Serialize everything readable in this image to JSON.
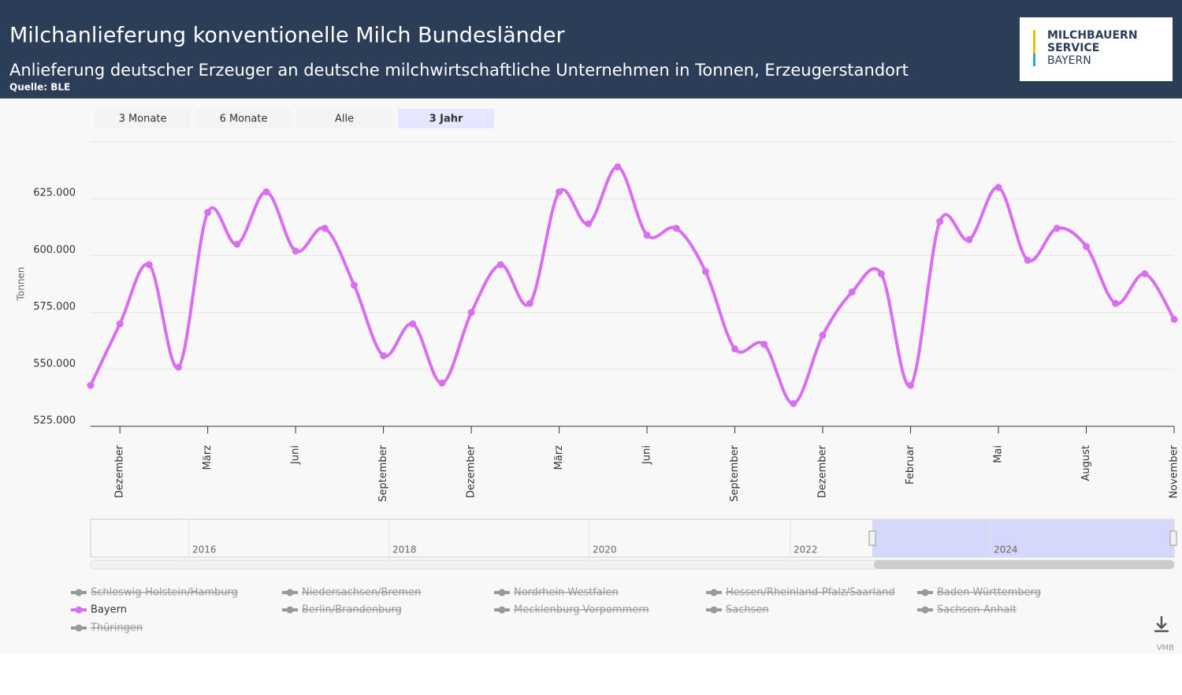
{
  "header": {
    "title": "Milchanlieferung konventionelle Milch Bundesländer",
    "subtitle": "Anlieferung deutscher Erzeuger an deutsche milchwirtschaftliche Unternehmen in Tonnen, Erzeugerstandort",
    "source": "Quelle: BLE",
    "logo": [
      "MILCHBAUERN",
      "SERVICE",
      "BAYERN"
    ]
  },
  "range_buttons": [
    "3 Monate",
    "6 Monate",
    "Alle",
    "3 Jahr"
  ],
  "selected_range": 3,
  "navigator": {
    "labels": [
      "2016",
      "2018",
      "2020",
      "2022",
      "2024"
    ]
  },
  "credit": "VMB",
  "chart_data": {
    "type": "line",
    "y_label": "Tonnen",
    "categories": [
      "November",
      "Dezember",
      null,
      null,
      "März",
      null,
      null,
      "Juni",
      null,
      null,
      "September",
      null,
      null,
      "Dezember",
      null,
      null,
      "März",
      null,
      null,
      "Juni",
      null,
      null,
      "September",
      null,
      null,
      "Dezember",
      null,
      null,
      "Februar",
      null,
      null,
      "Mai",
      null,
      null,
      "August",
      null,
      null,
      "November"
    ],
    "first_label_hidden": true,
    "ylim": [
      525000,
      650000
    ],
    "yticks": [
      {
        "value": 525000,
        "label": "525.000"
      },
      {
        "value": 550000,
        "label": "550.000"
      },
      {
        "value": 575000,
        "label": "575.000"
      },
      {
        "value": 600000,
        "label": "600.000"
      },
      {
        "value": 625000,
        "label": "625.000"
      }
    ],
    "grid": true,
    "series": [
      {
        "name": "Schleswig-Holstein/Hamburg",
        "visible": false
      },
      {
        "name": "Niedersachsen/Bremen",
        "visible": false
      },
      {
        "name": "Nordrhein-Westfalen",
        "visible": false
      },
      {
        "name": "Hessen/Rheinland-Pfalz/Saarland",
        "visible": false
      },
      {
        "name": "Baden-Württemberg",
        "visible": false
      },
      {
        "name": "Bayern",
        "visible": true,
        "color": "#d96ef0",
        "values": [
          543000,
          570000,
          596000,
          551000,
          619000,
          605000,
          628000,
          602000,
          612000,
          587000,
          556000,
          570000,
          544000,
          575000,
          596000,
          579000,
          628000,
          614000,
          639000,
          609000,
          612000,
          593000,
          559000,
          561000,
          535000,
          565000,
          584000,
          592000,
          543000,
          615000,
          607000,
          630000,
          598000,
          612000,
          604000,
          579000,
          592000,
          572000
        ]
      },
      {
        "name": "Berlin/Brandenburg",
        "visible": false
      },
      {
        "name": "Mecklenburg-Vorpommern",
        "visible": false
      },
      {
        "name": "Sachsen",
        "visible": false
      },
      {
        "name": "Sachsen-Anhalt",
        "visible": false
      },
      {
        "name": "Thüringen",
        "visible": false
      }
    ]
  }
}
